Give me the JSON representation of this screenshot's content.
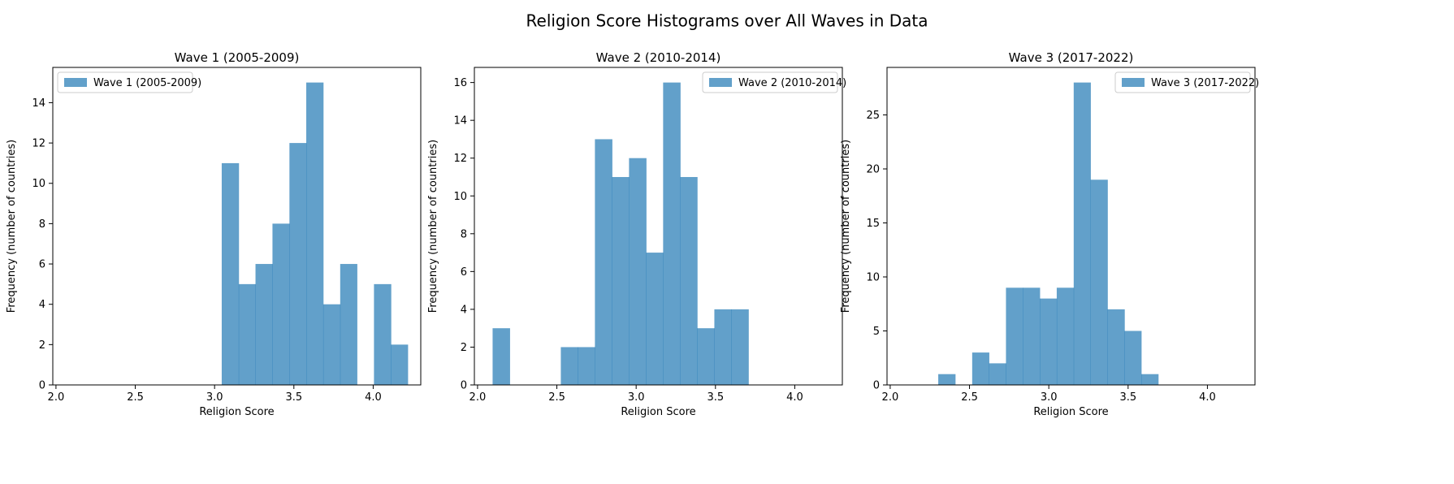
{
  "figure": {
    "suptitle": "Religion Score Histograms over All Waves in Data"
  },
  "colors": {
    "bar": "#1f77b4",
    "bar_alpha": 0.7
  },
  "chart_data": [
    {
      "type": "bar",
      "subtype": "histogram",
      "title": "Wave 1 (2005-2009)",
      "xlabel": "Religion Score",
      "ylabel": "Frequency (number of countries)",
      "xlim": [
        1.98,
        4.3
      ],
      "ylim": [
        0,
        15.75
      ],
      "xticks": [
        2.0,
        2.5,
        3.0,
        3.5,
        4.0
      ],
      "yticks": [
        0,
        2,
        4,
        6,
        8,
        10,
        12,
        14
      ],
      "legend": {
        "label": "Wave 1 (2005-2009)",
        "position": "top-left"
      },
      "bins": [
        {
          "x0": 3.045,
          "x1": 3.152,
          "count": 11
        },
        {
          "x0": 3.152,
          "x1": 3.258,
          "count": 5
        },
        {
          "x0": 3.258,
          "x1": 3.365,
          "count": 6
        },
        {
          "x0": 3.365,
          "x1": 3.472,
          "count": 8
        },
        {
          "x0": 3.472,
          "x1": 3.578,
          "count": 12
        },
        {
          "x0": 3.578,
          "x1": 3.685,
          "count": 15
        },
        {
          "x0": 3.685,
          "x1": 3.792,
          "count": 4
        },
        {
          "x0": 3.792,
          "x1": 3.898,
          "count": 6
        },
        {
          "x0": 3.898,
          "x1": 4.005,
          "count": 0
        },
        {
          "x0": 4.005,
          "x1": 4.112,
          "count": 5
        },
        {
          "x0": 4.112,
          "x1": 4.218,
          "count": 2
        }
      ]
    },
    {
      "type": "bar",
      "subtype": "histogram",
      "title": "Wave 2 (2010-2014)",
      "xlabel": "Religion Score",
      "ylabel": "Frequency (number of countries)",
      "xlim": [
        1.98,
        4.3
      ],
      "ylim": [
        0,
        16.8
      ],
      "xticks": [
        2.0,
        2.5,
        3.0,
        3.5,
        4.0
      ],
      "yticks": [
        0,
        2,
        4,
        6,
        8,
        10,
        12,
        14,
        16
      ],
      "legend": {
        "label": "Wave 2 (2010-2014)",
        "position": "top-right"
      },
      "bins": [
        {
          "x0": 2.095,
          "x1": 2.203,
          "count": 3
        },
        {
          "x0": 2.203,
          "x1": 2.31,
          "count": 0
        },
        {
          "x0": 2.31,
          "x1": 2.418,
          "count": 0
        },
        {
          "x0": 2.418,
          "x1": 2.525,
          "count": 0
        },
        {
          "x0": 2.525,
          "x1": 2.633,
          "count": 2
        },
        {
          "x0": 2.633,
          "x1": 2.74,
          "count": 2
        },
        {
          "x0": 2.74,
          "x1": 2.848,
          "count": 13
        },
        {
          "x0": 2.848,
          "x1": 2.955,
          "count": 11
        },
        {
          "x0": 2.955,
          "x1": 3.063,
          "count": 12
        },
        {
          "x0": 3.063,
          "x1": 3.17,
          "count": 7
        },
        {
          "x0": 3.17,
          "x1": 3.278,
          "count": 16
        },
        {
          "x0": 3.278,
          "x1": 3.385,
          "count": 11
        },
        {
          "x0": 3.385,
          "x1": 3.493,
          "count": 3
        },
        {
          "x0": 3.493,
          "x1": 3.6,
          "count": 4
        },
        {
          "x0": 3.6,
          "x1": 3.708,
          "count": 4
        }
      ]
    },
    {
      "type": "bar",
      "subtype": "histogram",
      "title": "Wave 3 (2017-2022)",
      "xlabel": "Religion Score",
      "ylabel": "Frequency (number of countries)",
      "xlim": [
        1.98,
        4.3
      ],
      "ylim": [
        0,
        29.4
      ],
      "xticks": [
        2.0,
        2.5,
        3.0,
        3.5,
        4.0
      ],
      "yticks": [
        0,
        5,
        10,
        15,
        20,
        25
      ],
      "legend": {
        "label": "Wave 3 (2017-2022)",
        "position": "top-right"
      },
      "bins": [
        {
          "x0": 2.303,
          "x1": 2.41,
          "count": 1
        },
        {
          "x0": 2.41,
          "x1": 2.517,
          "count": 0
        },
        {
          "x0": 2.517,
          "x1": 2.623,
          "count": 3
        },
        {
          "x0": 2.623,
          "x1": 2.73,
          "count": 2
        },
        {
          "x0": 2.73,
          "x1": 2.837,
          "count": 9
        },
        {
          "x0": 2.837,
          "x1": 2.943,
          "count": 9
        },
        {
          "x0": 2.943,
          "x1": 3.05,
          "count": 8
        },
        {
          "x0": 3.05,
          "x1": 3.157,
          "count": 9
        },
        {
          "x0": 3.157,
          "x1": 3.263,
          "count": 28
        },
        {
          "x0": 3.263,
          "x1": 3.37,
          "count": 19
        },
        {
          "x0": 3.37,
          "x1": 3.477,
          "count": 7
        },
        {
          "x0": 3.477,
          "x1": 3.583,
          "count": 5
        },
        {
          "x0": 3.583,
          "x1": 3.69,
          "count": 1
        }
      ]
    }
  ]
}
